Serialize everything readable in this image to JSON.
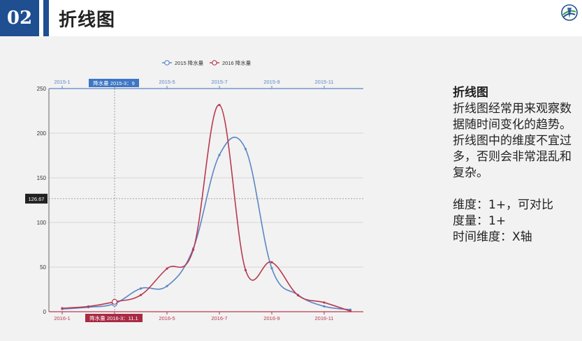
{
  "slide": {
    "number": "02",
    "title": "折线图"
  },
  "description": {
    "heading": "折线图",
    "lines": [
      "折线图经常用来观察数",
      "据随时间变化的趋势。",
      "折线图中的维度不宜过",
      "多，否则会非常混乱和",
      "复杂。"
    ],
    "specs": [
      "维度：1+，可对比",
      "度量：1+",
      "时间维度：X轴"
    ]
  },
  "colors": {
    "brand": "#1f4e91",
    "series_2015": "#5b86c5",
    "series_2016": "#b8384f",
    "tooltip_top": "#3d76c4",
    "tooltip_bottom": "#a82a45",
    "crosshair_label": "#222222"
  },
  "chart_data": {
    "type": "line",
    "legend_position": "top-center",
    "grid": true,
    "ylim": [
      0,
      250
    ],
    "yticks": [
      0,
      50,
      100,
      150,
      200,
      250
    ],
    "top_axis": {
      "ticks": [
        "2015-1",
        "2015-3",
        "2015-5",
        "2015-7",
        "2015-9",
        "2015-11"
      ],
      "tick_months": [
        1,
        3,
        5,
        7,
        9,
        11
      ],
      "tooltip": "降水量  2015-3：9"
    },
    "bottom_axis": {
      "ticks": [
        "2016-1",
        "2016-3",
        "2016-5",
        "2016-7",
        "2016-9",
        "2016-11"
      ],
      "tick_months": [
        1,
        3,
        5,
        7,
        9,
        11
      ],
      "tooltip": "降水量  2016-3：11.1"
    },
    "crosshair": {
      "month": 3,
      "y_label": "126.67",
      "y_value": 126.67
    },
    "series": [
      {
        "name": "2015 降水量",
        "months": [
          1,
          2,
          3,
          4,
          5,
          6,
          7,
          8,
          9,
          10,
          11,
          12
        ],
        "values": [
          3,
          5,
          9,
          26,
          28.7,
          70.7,
          175.6,
          182.2,
          48.7,
          18.8,
          6,
          2.3
        ]
      },
      {
        "name": "2016 降水量",
        "months": [
          1,
          2,
          3,
          4,
          5,
          6,
          7,
          8,
          9,
          10,
          11,
          12
        ],
        "values": [
          3.9,
          5.9,
          11.1,
          18.7,
          48.3,
          69.2,
          231.6,
          46.6,
          55.4,
          18.4,
          10.3,
          0.7
        ]
      }
    ]
  }
}
